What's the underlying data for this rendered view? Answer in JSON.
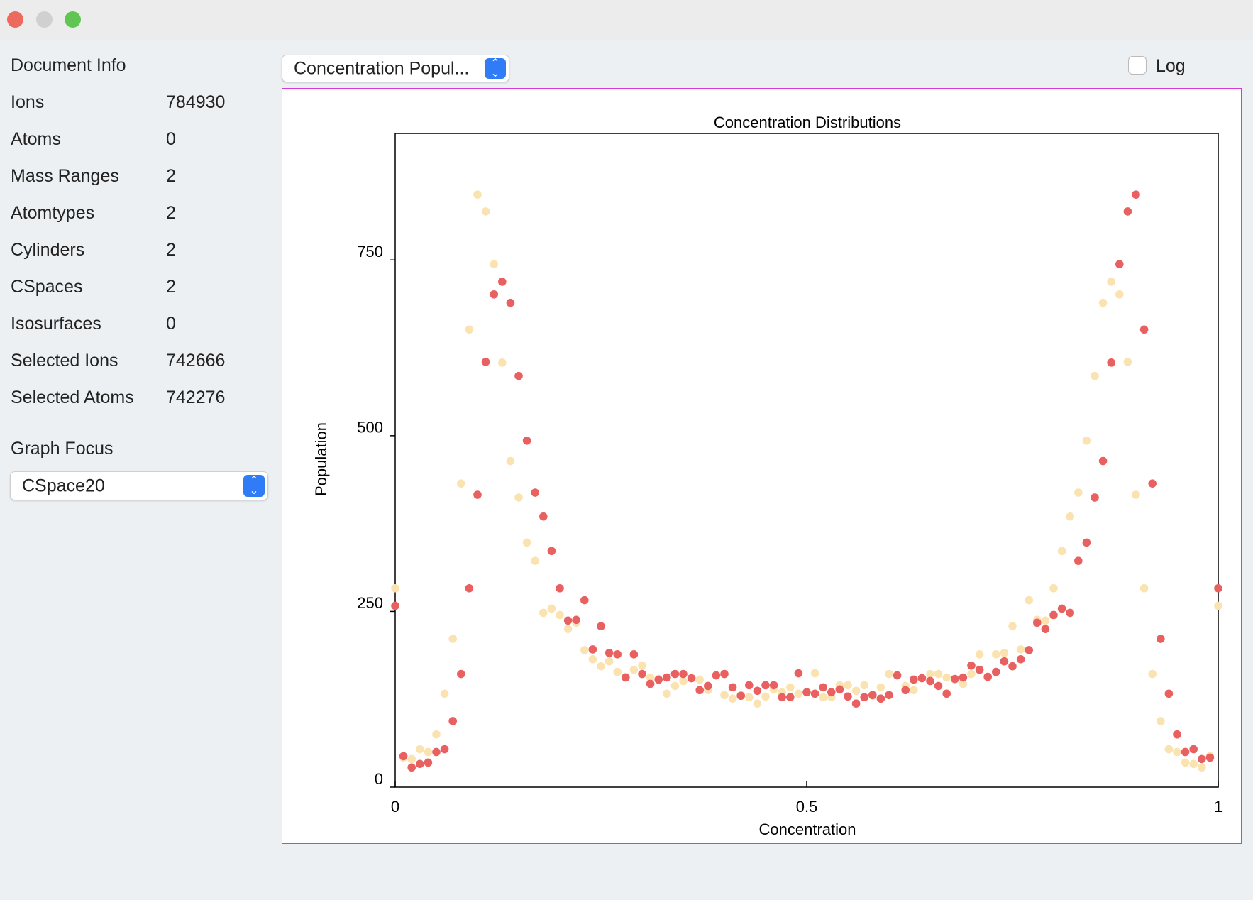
{
  "sidebar": {
    "title": "Document Info",
    "rows": [
      [
        "Ions",
        784930
      ],
      [
        "Atoms",
        0
      ],
      [
        "Mass Ranges",
        2
      ],
      [
        "Atomtypes",
        2
      ],
      [
        "Cylinders",
        2
      ],
      [
        "CSpaces",
        2
      ],
      [
        "Isosurfaces",
        0
      ],
      [
        "Selected Ions",
        742666
      ],
      [
        "Selected Atoms",
        742276
      ]
    ],
    "graph_focus_label": "Graph Focus",
    "graph_focus_value": "CSpace20"
  },
  "toolbar": {
    "plot_select": "Concentration Popul...",
    "log_label": "Log",
    "log_checked": false
  },
  "chart_data": {
    "type": "scatter",
    "title": "Concentration Distributions",
    "x_label": "Concentration",
    "y_label": "Population",
    "x": [
      0,
      0.01,
      0.02,
      0.03,
      0.04,
      0.05,
      0.06,
      0.07,
      0.08,
      0.09,
      0.1,
      0.11,
      0.12,
      0.13,
      0.14,
      0.15,
      0.16,
      0.17,
      0.18,
      0.19,
      0.2,
      0.21,
      0.22,
      0.23,
      0.24,
      0.25,
      0.26,
      0.27,
      0.28,
      0.29,
      0.3,
      0.31,
      0.32,
      0.33,
      0.34,
      0.35,
      0.36,
      0.37,
      0.38,
      0.39,
      0.4,
      0.41,
      0.42,
      0.43,
      0.44,
      0.45,
      0.46,
      0.47,
      0.48,
      0.49,
      0.5,
      0.51,
      0.52,
      0.53,
      0.54,
      0.55,
      0.56,
      0.57,
      0.58,
      0.59,
      0.6,
      0.61,
      0.62,
      0.63,
      0.64,
      0.65,
      0.66,
      0.67,
      0.68,
      0.69,
      0.7,
      0.71,
      0.72,
      0.73,
      0.74,
      0.75,
      0.76,
      0.77,
      0.78,
      0.79,
      0.8,
      0.81,
      0.82,
      0.83,
      0.84,
      0.85,
      0.86,
      0.87,
      0.88,
      0.89,
      0.9,
      0.91,
      0.92,
      0.93,
      0.94,
      0.95,
      0.96,
      0.97,
      0.98,
      0.99,
      1
    ],
    "series": [
      {
        "color": "#fbe3b1",
        "values": [
          283,
          42,
          40,
          54,
          50,
          75,
          133,
          211,
          432,
          651,
          843,
          819,
          744,
          604,
          464,
          412,
          348,
          322,
          248,
          254,
          245,
          225,
          234,
          195,
          182,
          172,
          179,
          164,
          157,
          167,
          173,
          156,
          154,
          133,
          144,
          151,
          155,
          153,
          138,
          159,
          131,
          126,
          131,
          128,
          119,
          129,
          139,
          135,
          142,
          133,
          135,
          162,
          128,
          128,
          145,
          145,
          137,
          145,
          130,
          142,
          161,
          159,
          144,
          138,
          155,
          161,
          161,
          156,
          153,
          147,
          161,
          189,
          156,
          189,
          191,
          229,
          196,
          266,
          238,
          237,
          283,
          336,
          385,
          419,
          493,
          585,
          689,
          719,
          701,
          605,
          416,
          283,
          161,
          94,
          54,
          50,
          35,
          33,
          28,
          44,
          258
        ]
      },
      {
        "color": "#e8605f",
        "values": [
          258,
          44,
          28,
          33,
          35,
          50,
          54,
          94,
          161,
          283,
          416,
          605,
          701,
          719,
          689,
          585,
          493,
          419,
          385,
          336,
          283,
          237,
          238,
          266,
          196,
          229,
          191,
          189,
          156,
          189,
          161,
          147,
          153,
          156,
          161,
          161,
          155,
          138,
          144,
          159,
          161,
          142,
          130,
          145,
          137,
          145,
          145,
          128,
          128,
          162,
          135,
          133,
          142,
          135,
          139,
          129,
          119,
          128,
          131,
          126,
          131,
          159,
          138,
          153,
          155,
          151,
          144,
          133,
          154,
          156,
          173,
          167,
          157,
          164,
          179,
          172,
          182,
          195,
          234,
          225,
          245,
          254,
          248,
          322,
          348,
          412,
          464,
          604,
          744,
          819,
          843,
          651,
          432,
          211,
          133,
          75,
          50,
          54,
          40,
          42,
          283
        ]
      }
    ],
    "xlim": [
      0,
      1
    ],
    "xticks": [
      0,
      0.5,
      1
    ],
    "ylim": [
      0,
      930
    ],
    "yticks": [
      0,
      250,
      500,
      750
    ],
    "grid": false
  }
}
